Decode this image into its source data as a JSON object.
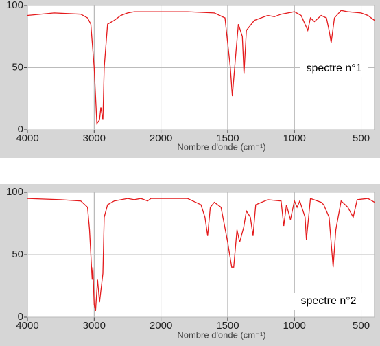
{
  "chart_data": [
    {
      "type": "line",
      "annotation": "spectre n°1",
      "xlabel": "Nombre d'onde (cm⁻¹)",
      "xlim": [
        4000,
        400
      ],
      "xticks": [
        4000,
        3000,
        2000,
        1500,
        1000,
        500
      ],
      "x_scale_break": 2000,
      "ylim": [
        0,
        100
      ],
      "yticks": [
        0,
        50,
        100
      ],
      "grid": true,
      "series": [
        {
          "color": "#e41a1c",
          "x": [
            4000,
            3600,
            3200,
            3100,
            3050,
            3000,
            2960,
            2920,
            2900,
            2870,
            2850,
            2800,
            2700,
            2600,
            2500,
            2400,
            2000,
            1800,
            1600,
            1520,
            1480,
            1465,
            1440,
            1420,
            1390,
            1378,
            1360,
            1300,
            1250,
            1200,
            1150,
            1100,
            1000,
            950,
            900,
            880,
            850,
            800,
            760,
            740,
            725,
            700,
            650,
            600,
            500,
            450,
            400
          ],
          "values": [
            92,
            94,
            93,
            90,
            85,
            50,
            5,
            8,
            18,
            8,
            50,
            85,
            88,
            92,
            94,
            95,
            95,
            95,
            94,
            90,
            50,
            27,
            60,
            85,
            75,
            45,
            80,
            88,
            90,
            92,
            91,
            93,
            95,
            92,
            80,
            90,
            87,
            92,
            90,
            80,
            70,
            90,
            96,
            95,
            94,
            92,
            88
          ]
        }
      ]
    },
    {
      "type": "line",
      "annotation": "spectre n°2",
      "xlabel": "Nombre d'onde (cm⁻¹)",
      "xlim": [
        4000,
        400
      ],
      "xticks": [
        4000,
        3000,
        2000,
        1500,
        1000,
        500
      ],
      "x_scale_break": 2000,
      "ylim": [
        0,
        100
      ],
      "yticks": [
        0,
        50,
        100
      ],
      "grid": true,
      "series": [
        {
          "color": "#e41a1c",
          "x": [
            4000,
            3500,
            3200,
            3100,
            3070,
            3030,
            3020,
            3000,
            2980,
            2950,
            2920,
            2870,
            2850,
            2800,
            2700,
            2500,
            2400,
            2300,
            2200,
            2150,
            2000,
            1800,
            1700,
            1670,
            1650,
            1630,
            1600,
            1550,
            1500,
            1470,
            1455,
            1430,
            1410,
            1380,
            1360,
            1330,
            1310,
            1290,
            1200,
            1100,
            1080,
            1060,
            1030,
            1000,
            980,
            960,
            920,
            910,
            880,
            800,
            780,
            760,
            740,
            710,
            690,
            650,
            600,
            560,
            530,
            450,
            400
          ],
          "values": [
            95,
            94,
            93,
            88,
            70,
            30,
            40,
            10,
            5,
            30,
            12,
            35,
            80,
            90,
            93,
            95,
            94,
            95,
            93,
            95,
            95,
            95,
            90,
            80,
            65,
            88,
            92,
            88,
            60,
            40,
            40,
            70,
            60,
            72,
            85,
            80,
            65,
            90,
            94,
            93,
            73,
            90,
            78,
            93,
            88,
            93,
            80,
            62,
            95,
            92,
            90,
            85,
            80,
            40,
            70,
            93,
            88,
            80,
            94,
            95,
            92
          ]
        }
      ]
    }
  ]
}
